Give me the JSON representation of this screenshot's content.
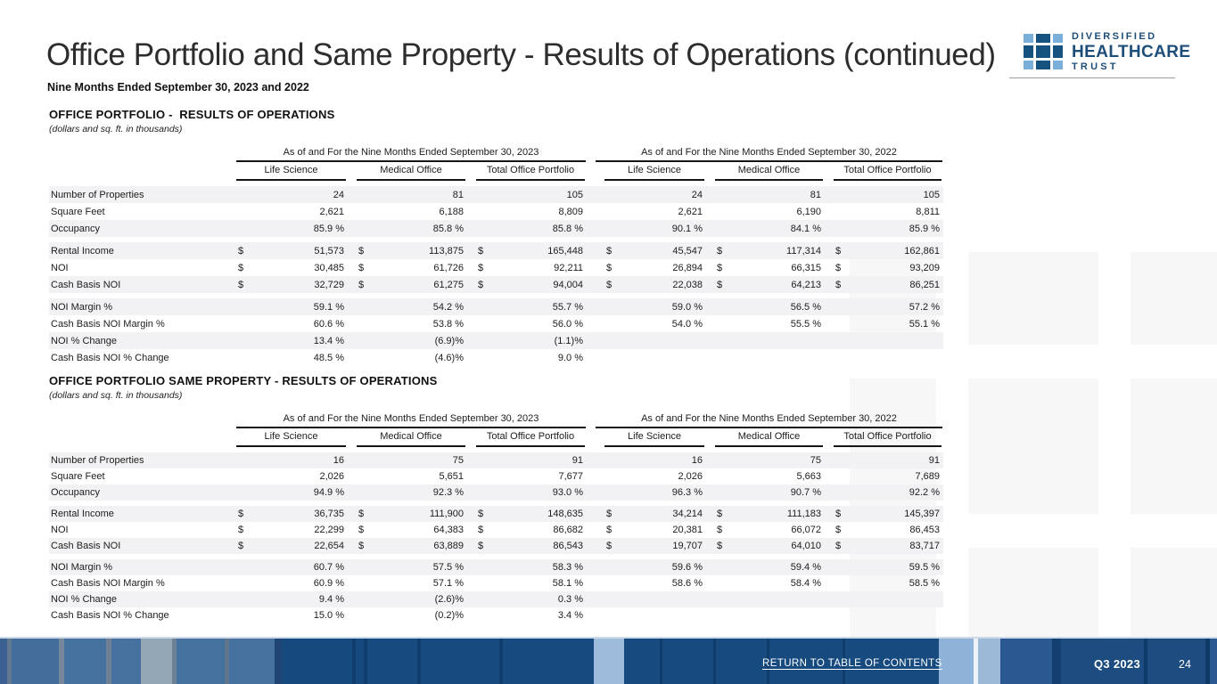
{
  "header": {
    "title": "Office Portfolio and Same Property - Results of Operations (continued)",
    "subtitle": "Nine Months Ended September 30, 2023 and 2022"
  },
  "logo": {
    "line1": "DIVERSIFIED",
    "line2": "HEALTHCARE",
    "line3": "TRUST",
    "grid_icon": "logo-grid-icon",
    "colors": {
      "dark_blue": "#15527f",
      "light_blue": "#79afd8",
      "text_navy": "#1d4e79"
    }
  },
  "tables": [
    {
      "title": "OFFICE PORTFOLIO -  RESULTS OF OPERATIONS",
      "note": "(dollars and sq. ft. in thousands)",
      "period_headers": [
        "As of and For the Nine Months Ended September 30, 2023",
        "As of and For the Nine Months Ended September 30, 2022"
      ],
      "column_headers": [
        "Life Science",
        "Medical Office",
        "Total Office Portfolio",
        "Life Science",
        "Medical Office",
        "Total Office Portfolio"
      ],
      "row_groups": [
        {
          "rows": [
            {
              "label": "Number of Properties",
              "dollar": false,
              "values": [
                "24",
                "81",
                "105",
                "24",
                "81",
                "105"
              ]
            },
            {
              "label": "Square Feet",
              "dollar": false,
              "values": [
                "2,621",
                "6,188",
                "8,809",
                "2,621",
                "6,190",
                "8,811"
              ]
            },
            {
              "label": "Occupancy",
              "dollar": false,
              "values": [
                "85.9 %",
                "85.8 %",
                "85.8 %",
                "90.1 %",
                "84.1 %",
                "85.9 %"
              ]
            }
          ]
        },
        {
          "rows": [
            {
              "label": "Rental Income",
              "dollar": true,
              "values": [
                "51,573",
                "113,875",
                "165,448",
                "45,547",
                "117,314",
                "162,861"
              ]
            },
            {
              "label": "NOI",
              "dollar": true,
              "values": [
                "30,485",
                "61,726",
                "92,211",
                "26,894",
                "66,315",
                "93,209"
              ]
            },
            {
              "label": "Cash Basis NOI",
              "dollar": true,
              "values": [
                "32,729",
                "61,275",
                "94,004",
                "22,038",
                "64,213",
                "86,251"
              ]
            }
          ]
        },
        {
          "rows": [
            {
              "label": "NOI Margin %",
              "dollar": false,
              "values": [
                "59.1 %",
                "54.2 %",
                "55.7 %",
                "59.0 %",
                "56.5 %",
                "57.2 %"
              ]
            },
            {
              "label": "Cash Basis NOI Margin %",
              "dollar": false,
              "values": [
                "60.6 %",
                "53.8 %",
                "56.0 %",
                "54.0 %",
                "55.5 %",
                "55.1 %"
              ]
            },
            {
              "label": "NOI % Change",
              "dollar": false,
              "values": [
                "13.4 %",
                "(6.9)%",
                "(1.1)%",
                "",
                "",
                ""
              ]
            },
            {
              "label": "Cash Basis NOI % Change",
              "dollar": false,
              "values": [
                "48.5 %",
                "(4.6)%",
                "9.0 %",
                "",
                "",
                ""
              ]
            }
          ]
        }
      ]
    },
    {
      "title": "OFFICE PORTFOLIO SAME PROPERTY - RESULTS OF OPERATIONS",
      "note": "(dollars and sq. ft. in thousands)",
      "period_headers": [
        "As of and For the Nine Months Ended September 30, 2023",
        "As of and For the Nine Months Ended September 30, 2022"
      ],
      "column_headers": [
        "Life Science",
        "Medical Office",
        "Total Office Portfolio",
        "Life Science",
        "Medical Office",
        "Total Office Portfolio"
      ],
      "row_groups": [
        {
          "rows": [
            {
              "label": "Number of Properties",
              "dollar": false,
              "values": [
                "16",
                "75",
                "91",
                "16",
                "75",
                "91"
              ]
            },
            {
              "label": "Square Feet",
              "dollar": false,
              "values": [
                "2,026",
                "5,651",
                "7,677",
                "2,026",
                "5,663",
                "7,689"
              ]
            },
            {
              "label": "Occupancy",
              "dollar": false,
              "values": [
                "94.9 %",
                "92.3 %",
                "93.0 %",
                "96.3 %",
                "90.7 %",
                "92.2 %"
              ]
            }
          ]
        },
        {
          "rows": [
            {
              "label": "Rental Income",
              "dollar": true,
              "values": [
                "36,735",
                "111,900",
                "148,635",
                "34,214",
                "111,183",
                "145,397"
              ]
            },
            {
              "label": "NOI",
              "dollar": true,
              "values": [
                "22,299",
                "64,383",
                "86,682",
                "20,381",
                "66,072",
                "86,453"
              ]
            },
            {
              "label": "Cash Basis NOI",
              "dollar": true,
              "values": [
                "22,654",
                "63,889",
                "86,543",
                "19,707",
                "64,010",
                "83,717"
              ]
            }
          ]
        },
        {
          "rows": [
            {
              "label": "NOI Margin %",
              "dollar": false,
              "values": [
                "60.7 %",
                "57.5 %",
                "58.3 %",
                "59.6 %",
                "59.4 %",
                "59.5 %"
              ]
            },
            {
              "label": "Cash Basis NOI Margin %",
              "dollar": false,
              "values": [
                "60.9 %",
                "57.1 %",
                "58.1 %",
                "58.6 %",
                "58.4 %",
                "58.5 %"
              ]
            },
            {
              "label": "NOI % Change",
              "dollar": false,
              "values": [
                "9.4 %",
                "(2.6)%",
                "0.3 %",
                "",
                "",
                ""
              ]
            },
            {
              "label": "Cash Basis NOI % Change",
              "dollar": false,
              "values": [
                "15.0 %",
                "(0.2)%",
                "3.4 %",
                "",
                "",
                ""
              ]
            }
          ]
        }
      ]
    }
  ],
  "footer": {
    "link_label": "RETURN TO TABLE OF CONTENTS",
    "quarter": "Q3 2023",
    "page_number": "24",
    "colors": {
      "navy": "#174b80",
      "light_blue_stripe": "#8fb3d8"
    }
  }
}
